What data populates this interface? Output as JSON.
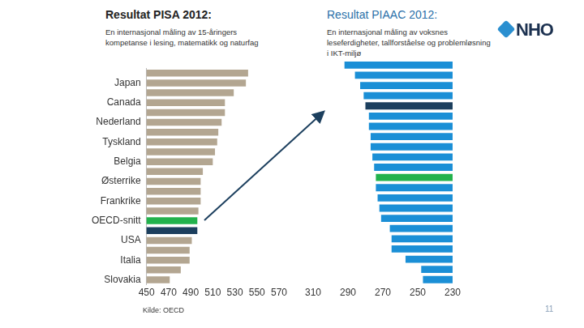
{
  "chart_data": [
    {
      "type": "bar",
      "title": "Resultat PISA 2012:",
      "subtitle": "En internasjonal måling av 15-åringers kompetanse i lesing, matematikk og naturfag",
      "orientation": "horizontal",
      "categories": [
        null,
        "Japan",
        null,
        "Canada",
        null,
        "Nederland",
        null,
        "Tyskland",
        null,
        "Belgia",
        null,
        "Østerrike",
        null,
        "Frankrike",
        null,
        "OECD-snitt",
        null,
        "USA",
        null,
        "Italia",
        null,
        "Slovakia"
      ],
      "values": [
        542,
        540,
        529,
        521,
        521,
        518,
        515,
        514,
        512,
        510,
        501,
        499,
        499,
        499,
        497,
        496,
        496,
        491,
        489,
        489,
        481,
        471
      ],
      "colors": [
        "#b3a691",
        "#b3a691",
        "#b3a691",
        "#b3a691",
        "#b3a691",
        "#b3a691",
        "#b3a691",
        "#b3a691",
        "#b3a691",
        "#b3a691",
        "#b3a691",
        "#b3a691",
        "#b3a691",
        "#b3a691",
        "#b3a691",
        "#22b24c",
        "#1c3f5e",
        "#b3a691",
        "#b3a691",
        "#b3a691",
        "#b3a691",
        "#b3a691"
      ],
      "xlim": [
        450,
        570
      ],
      "xticks": [
        450,
        470,
        490,
        510,
        530,
        550,
        570
      ],
      "grid": false
    },
    {
      "type": "bar",
      "title": "Resultat PIAAC 2012:",
      "subtitle": "En internasjonal måling av voksnes leseferdigheter, tallforståelse og problemløsning i IKT-miljø",
      "orientation": "horizontal",
      "categories": [
        null,
        null,
        null,
        null,
        null,
        null,
        null,
        null,
        null,
        null,
        null,
        null,
        null,
        null,
        null,
        null,
        null,
        null,
        null,
        null,
        null,
        null
      ],
      "values": [
        292,
        286,
        283,
        281,
        280,
        278,
        278,
        277,
        277,
        276,
        275,
        274,
        274,
        273,
        272,
        271,
        266,
        265,
        265,
        257,
        248,
        247
      ],
      "colors": [
        "#1b8fd6",
        "#1b8fd6",
        "#1b8fd6",
        "#1b8fd6",
        "#1c3f5e",
        "#1b8fd6",
        "#1b8fd6",
        "#1b8fd6",
        "#1b8fd6",
        "#1b8fd6",
        "#1b8fd6",
        "#22b24c",
        "#1b8fd6",
        "#1b8fd6",
        "#1b8fd6",
        "#1b8fd6",
        "#1b8fd6",
        "#1b8fd6",
        "#1b8fd6",
        "#1b8fd6",
        "#1b8fd6",
        "#1b8fd6"
      ],
      "xlim": [
        310,
        230
      ],
      "xticks": [
        310,
        290,
        270,
        250,
        230
      ],
      "grid": false,
      "tick_labels": "x"
    }
  ],
  "source": "Kilde: OECD",
  "logo": "NHO",
  "page_number": "11"
}
